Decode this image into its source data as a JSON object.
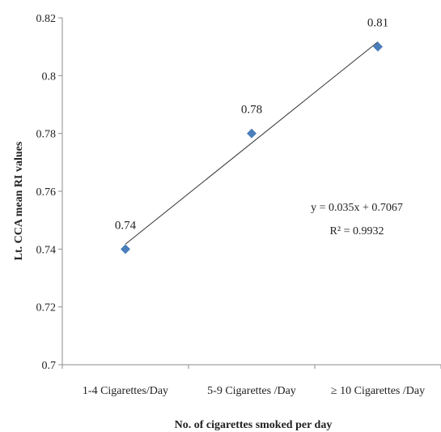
{
  "chart_data": {
    "type": "scatter",
    "categories": [
      "1-4 Cigarettes/Day",
      "5-9 Cigarettes /Day",
      "≥ 10 Cigarettes /Day"
    ],
    "values": [
      0.74,
      0.78,
      0.81
    ],
    "data_labels": [
      "0.74",
      "0.78",
      "0.81"
    ],
    "y_ticks": [
      "0.7",
      "0.72",
      "0.74",
      "0.76",
      "0.78",
      "0.8",
      "0.82"
    ],
    "ylim": [
      0.7,
      0.82
    ],
    "xlabel": "No. of cigarettes smoked per day",
    "ylabel": "Lt. CCA mean RI values",
    "trendline": {
      "type": "linear",
      "slope": 0.035,
      "intercept": 0.7067,
      "equation": "y = 0.035x + 0.7067",
      "r_squared": "R² = 0.9932"
    },
    "grid": false,
    "legend": "none",
    "marker": "diamond",
    "colors": {
      "marker": "#4a7ebb",
      "trendline": "#333333",
      "axis": "#8c8c8c"
    }
  }
}
